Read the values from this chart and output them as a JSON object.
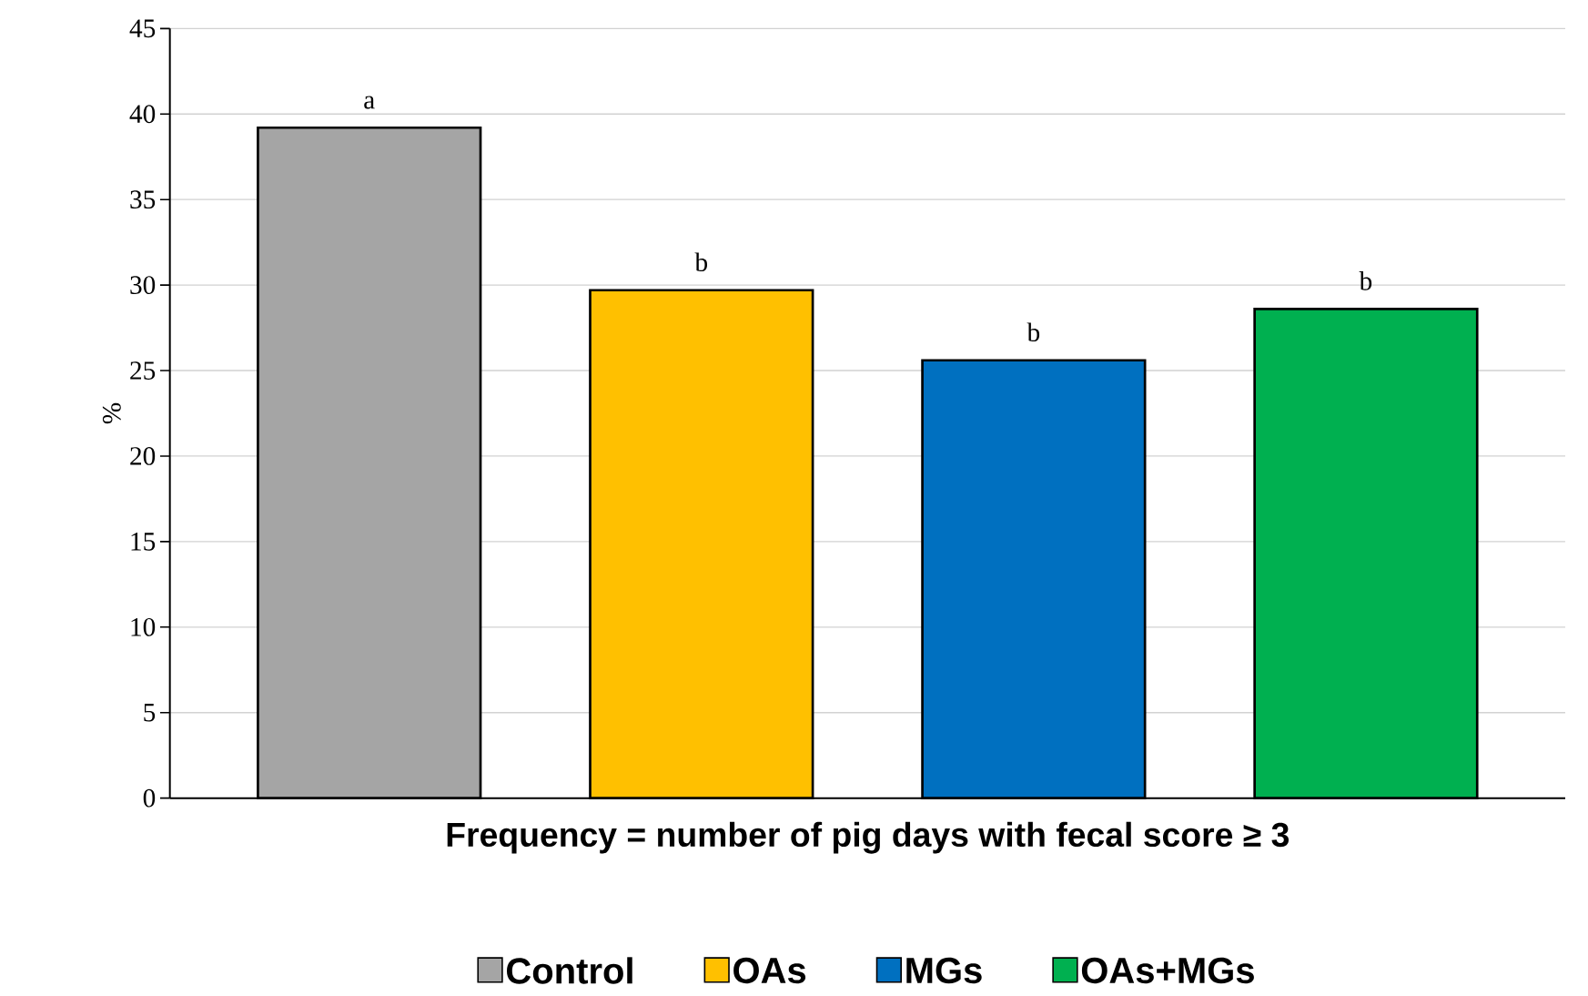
{
  "chart_data": {
    "type": "bar",
    "xlabel": "Frequency = number of pig days with fecal score ≥ 3",
    "ylabel": "%",
    "categories": [
      null,
      null,
      null,
      null
    ],
    "series": [
      {
        "name": "Control",
        "color": "#a5a5a5",
        "values": [
          39.2,
          null,
          null,
          null
        ]
      },
      {
        "name": "OAs",
        "color": "#ffc000",
        "values": [
          null,
          29.7,
          null,
          null
        ]
      },
      {
        "name": "MGs",
        "color": "#0070c0",
        "values": [
          null,
          null,
          25.6,
          null
        ]
      },
      {
        "name": "OAs+MGs",
        "color": "#00b050",
        "values": [
          null,
          null,
          null,
          28.6
        ]
      }
    ],
    "annotations": [
      "a",
      "b",
      "b",
      "b"
    ],
    "ylim": [
      0,
      45
    ],
    "yticks": [
      0,
      5,
      10,
      15,
      20,
      25,
      30,
      35,
      40,
      45
    ],
    "grid": "y",
    "legend": "bottom"
  }
}
